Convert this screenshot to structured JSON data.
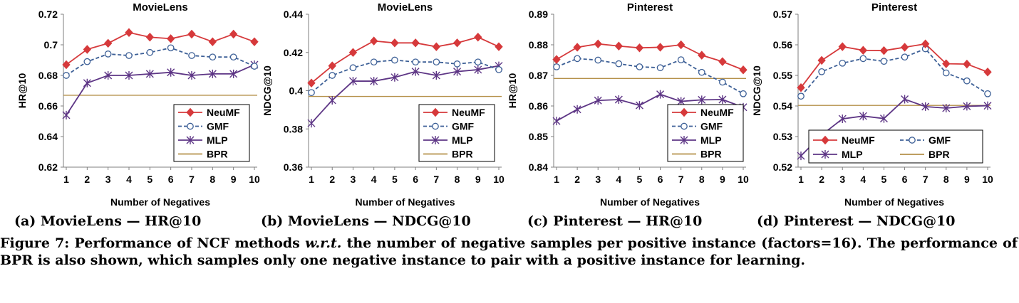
{
  "chart_data": [
    {
      "type": "line",
      "title": "MovieLens",
      "xlabel": "Number of Negatives",
      "ylabel": "HR@10",
      "x": [
        1,
        2,
        3,
        4,
        5,
        6,
        7,
        8,
        9,
        10
      ],
      "ylim": [
        0.62,
        0.72
      ],
      "yticks": [
        0.62,
        0.64,
        0.66,
        0.68,
        0.7,
        0.72
      ],
      "ytick_labels": [
        "0.62",
        "0.64",
        "0.66",
        "0.68",
        "0.7",
        "0.72"
      ],
      "grid": false,
      "legend_position": "bottom-right",
      "legend_layout": "column",
      "series": [
        {
          "name": "NeuMF",
          "values": [
            0.687,
            0.697,
            0.701,
            0.708,
            0.705,
            0.704,
            0.707,
            0.702,
            0.707,
            0.702
          ]
        },
        {
          "name": "GMF",
          "values": [
            0.68,
            0.689,
            0.694,
            0.693,
            0.695,
            0.698,
            0.693,
            0.692,
            0.692,
            0.686
          ]
        },
        {
          "name": "MLP",
          "values": [
            0.654,
            0.675,
            0.68,
            0.68,
            0.681,
            0.682,
            0.68,
            0.681,
            0.681,
            0.687
          ]
        },
        {
          "name": "BPR",
          "values": [
            0.667,
            0.667,
            0.667,
            0.667,
            0.667,
            0.667,
            0.667,
            0.667,
            0.667,
            0.667
          ]
        }
      ]
    },
    {
      "type": "line",
      "title": "MovieLens",
      "xlabel": "Number of Negatives",
      "ylabel": "NDCG@10",
      "x": [
        1,
        2,
        3,
        4,
        5,
        6,
        7,
        8,
        9,
        10
      ],
      "ylim": [
        0.36,
        0.44
      ],
      "yticks": [
        0.36,
        0.38,
        0.4,
        0.42,
        0.44
      ],
      "ytick_labels": [
        "0.36",
        "0.38",
        "0.4",
        "0.42",
        "0.44"
      ],
      "grid": false,
      "legend_position": "bottom-right",
      "legend_layout": "column",
      "series": [
        {
          "name": "NeuMF",
          "values": [
            0.404,
            0.413,
            0.42,
            0.426,
            0.425,
            0.425,
            0.423,
            0.425,
            0.428,
            0.423
          ]
        },
        {
          "name": "GMF",
          "values": [
            0.399,
            0.408,
            0.412,
            0.415,
            0.416,
            0.415,
            0.415,
            0.414,
            0.415,
            0.411
          ]
        },
        {
          "name": "MLP",
          "values": [
            0.383,
            0.395,
            0.405,
            0.405,
            0.407,
            0.41,
            0.408,
            0.41,
            0.411,
            0.413
          ]
        },
        {
          "name": "BPR",
          "values": [
            0.397,
            0.397,
            0.397,
            0.397,
            0.397,
            0.397,
            0.397,
            0.397,
            0.397,
            0.397
          ]
        }
      ]
    },
    {
      "type": "line",
      "title": "Pinterest",
      "xlabel": "Number of Negatives",
      "ylabel": "HR@10",
      "x": [
        1,
        2,
        3,
        4,
        5,
        6,
        7,
        8,
        9,
        10
      ],
      "ylim": [
        0.84,
        0.89
      ],
      "yticks": [
        0.84,
        0.85,
        0.86,
        0.87,
        0.88,
        0.89
      ],
      "ytick_labels": [
        "0.84",
        "0.85",
        "0.86",
        "0.87",
        "0.88",
        "0.89"
      ],
      "grid": false,
      "legend_position": "bottom-right",
      "legend_layout": "column",
      "series": [
        {
          "name": "NeuMF",
          "values": [
            0.8752,
            0.8792,
            0.8803,
            0.8796,
            0.879,
            0.8792,
            0.88,
            0.8766,
            0.8745,
            0.8718
          ]
        },
        {
          "name": "GMF",
          "values": [
            0.8728,
            0.8755,
            0.875,
            0.8738,
            0.8728,
            0.8725,
            0.8751,
            0.871,
            0.8678,
            0.864
          ]
        },
        {
          "name": "MLP",
          "values": [
            0.8551,
            0.8589,
            0.8618,
            0.8621,
            0.8602,
            0.8638,
            0.8615,
            0.862,
            0.8621,
            0.8596
          ]
        },
        {
          "name": "BPR",
          "values": [
            0.869,
            0.869,
            0.869,
            0.869,
            0.869,
            0.869,
            0.869,
            0.869,
            0.869,
            0.869
          ]
        }
      ]
    },
    {
      "type": "line",
      "title": "Pinterest",
      "xlabel": "Number of Negatives",
      "ylabel": "NDCG@10",
      "x": [
        1,
        2,
        3,
        4,
        5,
        6,
        7,
        8,
        9,
        10
      ],
      "ylim": [
        0.52,
        0.57
      ],
      "yticks": [
        0.52,
        0.53,
        0.54,
        0.55,
        0.56,
        0.57
      ],
      "ytick_labels": [
        "0.52",
        "0.53",
        "0.54",
        "0.55",
        "0.56",
        "0.57"
      ],
      "grid": false,
      "legend_position": "bottom-right",
      "legend_layout": "two-column",
      "series": [
        {
          "name": "NeuMF",
          "values": [
            0.546,
            0.5549,
            0.5594,
            0.5582,
            0.5581,
            0.5592,
            0.5603,
            0.5538,
            0.5537,
            0.5511
          ]
        },
        {
          "name": "GMF",
          "values": [
            0.5432,
            0.5512,
            0.554,
            0.5555,
            0.5546,
            0.556,
            0.5587,
            0.5508,
            0.5482,
            0.544
          ]
        },
        {
          "name": "MLP",
          "values": [
            0.5237,
            0.5305,
            0.5358,
            0.5367,
            0.5359,
            0.5422,
            0.5398,
            0.5393,
            0.5399,
            0.5401
          ]
        },
        {
          "name": "BPR",
          "values": [
            0.5402,
            0.5402,
            0.5402,
            0.5402,
            0.5402,
            0.5402,
            0.5402,
            0.5402,
            0.5402,
            0.5402
          ]
        }
      ]
    }
  ],
  "series_styles": {
    "NeuMF": {
      "color": "#d6393b",
      "marker": "diamond",
      "dash": "none"
    },
    "GMF": {
      "color": "#3c5f96",
      "marker": "circle",
      "dash": "dashed"
    },
    "MLP": {
      "color": "#5d3585",
      "marker": "star",
      "dash": "none"
    },
    "BPR": {
      "color": "#b5914a",
      "marker": "none",
      "dash": "none"
    }
  },
  "subcaptions": [
    "(a) MovieLens — HR@10",
    "(b) MovieLens — NDCG@10",
    "(c) Pinterest — HR@10",
    "(d) Pinterest — NDCG@10"
  ],
  "caption": {
    "lead": "Figure 7: Performance of NCF methods ",
    "wrt": "w.r.t.",
    "rest": " the number of negative samples per positive instance (factors=16). The performance of BPR is also shown, which samples only one negative instance to pair with a positive instance for learning."
  }
}
